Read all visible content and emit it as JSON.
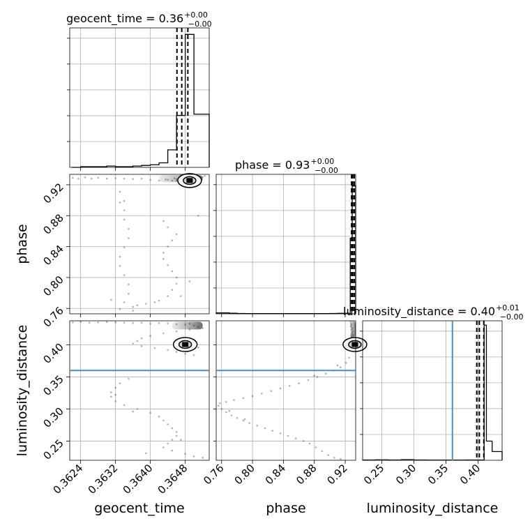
{
  "chart_data": {
    "type": "corner",
    "grid": true,
    "parameters": [
      "geocent_time",
      "phase",
      "luminosity_distance"
    ],
    "titles": [
      {
        "param": "geocent_time",
        "text": "geocent_time = 0.36",
        "sup": "+0.00",
        "sub": "−0.00"
      },
      {
        "param": "phase",
        "text": "phase = 0.93",
        "sup": "+0.00",
        "sub": "−0.00"
      },
      {
        "param": "luminosity_distance",
        "text": "luminosity_distance = 0.40",
        "sup": "+0.01",
        "sub": "−0.00"
      }
    ],
    "axes": {
      "geocent_time": {
        "range": [
          0.36215,
          0.36535
        ],
        "ticks": [
          0.3624,
          0.3632,
          0.364,
          0.3648
        ],
        "tick_labels": [
          "0.3624",
          "0.3632",
          "0.3640",
          "0.3648"
        ],
        "label": "geocent_time"
      },
      "phase": {
        "range": [
          0.753,
          0.9335
        ],
        "ticks": [
          0.76,
          0.8,
          0.84,
          0.88,
          0.92
        ],
        "tick_labels": [
          "0.76",
          "0.80",
          "0.84",
          "0.88",
          "0.92"
        ],
        "label": "phase"
      },
      "luminosity_distance": {
        "range": [
          0.22,
          0.4375
        ],
        "ticks": [
          0.25,
          0.3,
          0.35,
          0.4
        ],
        "tick_labels": [
          "0.25",
          "0.30",
          "0.35",
          "0.40"
        ],
        "label": "luminosity_distance"
      }
    },
    "histograms": {
      "geocent_time": {
        "edges": [
          0.3622,
          0.3624,
          0.3626,
          0.3628,
          0.363,
          0.3632,
          0.3634,
          0.3636,
          0.3638,
          0.364,
          0.3642,
          0.3644,
          0.3646,
          0.3648,
          0.365,
          0.36535
        ],
        "counts": [
          0,
          1,
          1,
          1,
          2,
          1,
          1,
          2,
          3,
          4,
          7,
          27,
          80,
          205,
          82
        ],
        "quantiles": [
          0.36461,
          0.36472,
          0.36486
        ],
        "ymax": 215
      },
      "phase": {
        "edges": [
          0.753,
          0.76,
          0.77,
          0.78,
          0.79,
          0.8,
          0.81,
          0.82,
          0.83,
          0.84,
          0.85,
          0.86,
          0.87,
          0.88,
          0.89,
          0.9,
          0.91,
          0.9265,
          0.929,
          0.9335
        ],
        "counts": [
          0.8,
          0.8,
          0.5,
          0.3,
          0.2,
          0.2,
          0.2,
          0.2,
          0.2,
          0.2,
          0.2,
          0.2,
          0.2,
          0.2,
          0.2,
          0.3,
          0.4,
          65,
          110
        ],
        "quantiles": [
          0.9282,
          0.9297,
          0.9318
        ],
        "ymax": 120
      },
      "luminosity_distance": {
        "edges": [
          0.22,
          0.24,
          0.26,
          0.28,
          0.3,
          0.32,
          0.34,
          0.36,
          0.38,
          0.3975,
          0.4095,
          0.413,
          0.422,
          0.4375
        ],
        "counts": [
          0.3,
          0.5,
          0.3,
          0.7,
          0.3,
          0.2,
          0.2,
          0.2,
          0.3,
          0.3,
          155,
          22,
          10
        ],
        "quantiles": [
          0.398,
          0.402,
          0.409
        ],
        "ymax": 160
      }
    },
    "truth": {
      "luminosity_distance": 0.36
    },
    "truth_color": "#4b8bcb",
    "samples_geocent_phase": [
      [
        0.36222,
        0.929
      ],
      [
        0.36235,
        0.928
      ],
      [
        0.3625,
        0.9295
      ],
      [
        0.36265,
        0.928
      ],
      [
        0.3628,
        0.929
      ],
      [
        0.363,
        0.928
      ],
      [
        0.3632,
        0.9285
      ],
      [
        0.3634,
        0.928
      ],
      [
        0.3636,
        0.9275
      ],
      [
        0.3638,
        0.928
      ],
      [
        0.364,
        0.9265
      ],
      [
        0.3642,
        0.9255
      ],
      [
        0.3644,
        0.9265
      ],
      [
        0.3645,
        0.9255
      ],
      [
        0.3646,
        0.9275
      ],
      [
        0.3647,
        0.927
      ],
      [
        0.36455,
        0.9285
      ],
      [
        0.3648,
        0.9295
      ],
      [
        0.3649,
        0.9305
      ],
      [
        0.365,
        0.931
      ],
      [
        0.36505,
        0.9285
      ],
      [
        0.3651,
        0.927
      ],
      [
        0.3652,
        0.93
      ],
      [
        0.36525,
        0.9315
      ],
      [
        0.3646,
        0.9255
      ],
      [
        0.36435,
        0.9268
      ],
      [
        0.3649,
        0.931
      ],
      [
        0.3647,
        0.932
      ],
      [
        0.3633,
        0.911
      ],
      [
        0.3634,
        0.899
      ],
      [
        0.3634,
        0.887
      ],
      [
        0.3634,
        0.875
      ],
      [
        0.3635,
        0.863
      ],
      [
        0.3635,
        0.851
      ],
      [
        0.3634,
        0.839
      ],
      [
        0.3633,
        0.827
      ],
      [
        0.3633,
        0.815
      ],
      [
        0.3634,
        0.803
      ],
      [
        0.3635,
        0.791
      ],
      [
        0.3635,
        0.779
      ],
      [
        0.3634,
        0.768
      ],
      [
        0.3633,
        0.759
      ],
      [
        0.3636,
        0.762
      ],
      [
        0.3639,
        0.766
      ],
      [
        0.3642,
        0.77
      ],
      [
        0.3644,
        0.776
      ],
      [
        0.3645,
        0.784
      ],
      [
        0.3646,
        0.792
      ],
      [
        0.3646,
        0.8
      ],
      [
        0.3645,
        0.808
      ],
      [
        0.3644,
        0.816
      ],
      [
        0.3643,
        0.824
      ],
      [
        0.3643,
        0.832
      ],
      [
        0.3644,
        0.84
      ],
      [
        0.3645,
        0.848
      ],
      [
        0.3646,
        0.856
      ],
      [
        0.3644,
        0.865
      ],
      [
        0.3643,
        0.873
      ],
      [
        0.3647,
        0.776
      ],
      [
        0.3649,
        0.795
      ],
      [
        0.3651,
        0.88
      ],
      [
        0.3641,
        0.768
      ],
      [
        0.3637,
        0.764
      ],
      [
        0.3631,
        0.771
      ],
      [
        0.3633,
        0.897
      ],
      [
        0.3636,
        0.757
      ]
    ],
    "samples_geocent_distance": [
      [
        0.36222,
        0.435
      ],
      [
        0.3624,
        0.436
      ],
      [
        0.3626,
        0.4345
      ],
      [
        0.3628,
        0.435
      ],
      [
        0.363,
        0.4355
      ],
      [
        0.3632,
        0.435
      ],
      [
        0.3634,
        0.4345
      ],
      [
        0.3636,
        0.434
      ],
      [
        0.3638,
        0.4345
      ],
      [
        0.364,
        0.433
      ],
      [
        0.3642,
        0.434
      ],
      [
        0.3644,
        0.4335
      ],
      [
        0.3646,
        0.432
      ],
      [
        0.3648,
        0.4315
      ],
      [
        0.3649,
        0.433
      ],
      [
        0.365,
        0.43
      ],
      [
        0.3651,
        0.428
      ],
      [
        0.3652,
        0.426
      ],
      [
        0.3649,
        0.424
      ],
      [
        0.3646,
        0.421
      ],
      [
        0.3643,
        0.418
      ],
      [
        0.364,
        0.414
      ],
      [
        0.3638,
        0.41
      ],
      [
        0.3637,
        0.406
      ],
      [
        0.3636,
        0.402
      ],
      [
        0.3638,
        0.398
      ],
      [
        0.3641,
        0.395
      ],
      [
        0.3644,
        0.392
      ],
      [
        0.3646,
        0.389
      ],
      [
        0.3648,
        0.386
      ],
      [
        0.365,
        0.384
      ],
      [
        0.36485,
        0.39
      ],
      [
        0.3651,
        0.396
      ],
      [
        0.3635,
        0.347
      ],
      [
        0.3633,
        0.34
      ],
      [
        0.3632,
        0.333
      ],
      [
        0.3631,
        0.326
      ],
      [
        0.3631,
        0.319
      ],
      [
        0.3632,
        0.312
      ],
      [
        0.3634,
        0.306
      ],
      [
        0.3637,
        0.3
      ],
      [
        0.364,
        0.294
      ],
      [
        0.3642,
        0.288
      ],
      [
        0.3643,
        0.282
      ],
      [
        0.3644,
        0.276
      ],
      [
        0.3645,
        0.27
      ],
      [
        0.3646,
        0.264
      ],
      [
        0.3646,
        0.258
      ],
      [
        0.3645,
        0.252
      ],
      [
        0.3644,
        0.246
      ],
      [
        0.3643,
        0.24
      ],
      [
        0.3645,
        0.235
      ],
      [
        0.3648,
        0.23
      ],
      [
        0.365,
        0.226
      ],
      [
        0.3639,
        0.231
      ],
      [
        0.3636,
        0.296
      ],
      [
        0.3647,
        0.252
      ],
      [
        0.3632,
        0.322
      ],
      [
        0.3652,
        0.224
      ]
    ],
    "samples_phase_distance": [
      [
        0.9268,
        0.436
      ],
      [
        0.9275,
        0.433
      ],
      [
        0.928,
        0.431
      ],
      [
        0.9272,
        0.429
      ],
      [
        0.9285,
        0.427
      ],
      [
        0.929,
        0.425
      ],
      [
        0.928,
        0.423
      ],
      [
        0.9295,
        0.421
      ],
      [
        0.929,
        0.419
      ],
      [
        0.9285,
        0.417
      ],
      [
        0.928,
        0.415
      ],
      [
        0.9278,
        0.413
      ],
      [
        0.9285,
        0.4115
      ],
      [
        0.9295,
        0.4135
      ],
      [
        0.9305,
        0.4155
      ],
      [
        0.925,
        0.38
      ],
      [
        0.921,
        0.372
      ],
      [
        0.914,
        0.365
      ],
      [
        0.905,
        0.36
      ],
      [
        0.895,
        0.355
      ],
      [
        0.884,
        0.35
      ],
      [
        0.872,
        0.345
      ],
      [
        0.86,
        0.34
      ],
      [
        0.848,
        0.336
      ],
      [
        0.836,
        0.332
      ],
      [
        0.824,
        0.328
      ],
      [
        0.812,
        0.324
      ],
      [
        0.8,
        0.32
      ],
      [
        0.788,
        0.317
      ],
      [
        0.776,
        0.314
      ],
      [
        0.766,
        0.311
      ],
      [
        0.758,
        0.309
      ],
      [
        0.756,
        0.305
      ],
      [
        0.76,
        0.3
      ],
      [
        0.766,
        0.295
      ],
      [
        0.773,
        0.29
      ],
      [
        0.78,
        0.286
      ],
      [
        0.788,
        0.282
      ],
      [
        0.796,
        0.278
      ],
      [
        0.806,
        0.274
      ],
      [
        0.816,
        0.27
      ],
      [
        0.826,
        0.266
      ],
      [
        0.836,
        0.262
      ],
      [
        0.846,
        0.258
      ],
      [
        0.856,
        0.254
      ],
      [
        0.866,
        0.25
      ],
      [
        0.874,
        0.246
      ],
      [
        0.882,
        0.24
      ],
      [
        0.89,
        0.234
      ],
      [
        0.898,
        0.228
      ],
      [
        0.906,
        0.224
      ],
      [
        0.914,
        0.222
      ],
      [
        0.77,
        0.297
      ],
      [
        0.79,
        0.284
      ],
      [
        0.91,
        0.368
      ],
      [
        0.88,
        0.352
      ]
    ],
    "cores": {
      "geocent_phase": {
        "x": 0.3649,
        "y": 0.9255
      },
      "geocent_distance": {
        "x": 0.3648,
        "y": 0.4005
      },
      "phase_distance": {
        "x": 0.9325,
        "y": 0.4005
      }
    },
    "density_bands": {
      "geocent_phase": {
        "x0": 0.3642,
        "x1": 0.3652,
        "y0": 0.9235,
        "y1": 0.9325
      },
      "geocent_distance_top": {
        "x0": 0.3645,
        "x1": 0.3652,
        "y0": 0.424,
        "y1": 0.436
      },
      "phase_distance_top": {
        "x0": 0.9265,
        "x1": 0.9335,
        "y0": 0.411,
        "y1": 0.437
      }
    }
  }
}
